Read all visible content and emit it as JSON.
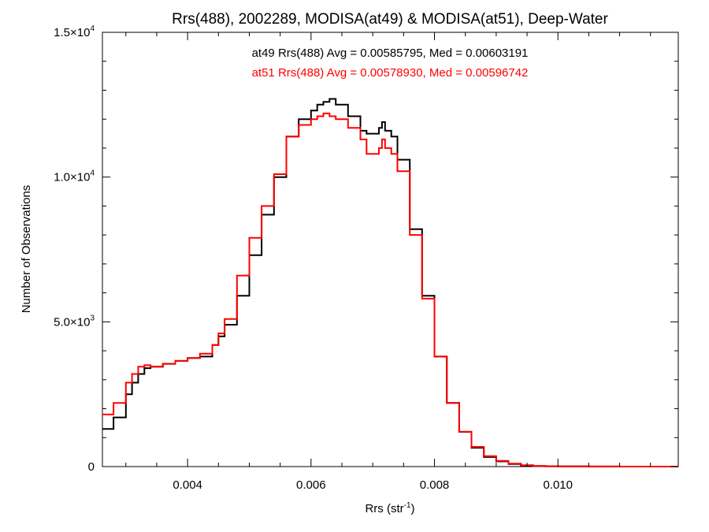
{
  "chart_data": {
    "type": "line",
    "title": "Rrs(488), 2002289, MODISA(at49) & MODISA(at51), Deep-Water",
    "xlabel": {
      "base": "Rrs (str",
      "sup": "-1",
      "close": ")"
    },
    "ylabel": "Number of Observations",
    "xlim": [
      0.00262,
      0.01195
    ],
    "ylim": [
      0,
      15000
    ],
    "grid": false,
    "xticks": [
      {
        "value": 0.004,
        "label": "0.004"
      },
      {
        "value": 0.006,
        "label": "0.006"
      },
      {
        "value": 0.008,
        "label": "0.008"
      },
      {
        "value": 0.01,
        "label": "0.010"
      }
    ],
    "yticks": [
      {
        "value": 0,
        "label": "0",
        "sup": ""
      },
      {
        "value": 5000,
        "label": "5.0×10",
        "sup": "3"
      },
      {
        "value": 10000,
        "label": "1.0×10",
        "sup": "4"
      },
      {
        "value": 15000,
        "label": "1.5×10",
        "sup": "4"
      }
    ],
    "annotations": [
      {
        "text": "at49 Rrs(488) Avg = 0.00585795, Med = 0.00603191",
        "color": "#000000"
      },
      {
        "text": "at51 Rrs(488) Avg = 0.00578930, Med = 0.00596742",
        "color": "#ff0000"
      }
    ],
    "series": [
      {
        "color": "#000000",
        "x": [
          0.00262,
          0.0028,
          0.003,
          0.0031,
          0.0032,
          0.0033,
          0.0034,
          0.0036,
          0.0038,
          0.004,
          0.0042,
          0.0044,
          0.0045,
          0.0046,
          0.0048,
          0.005,
          0.0052,
          0.0054,
          0.0056,
          0.0058,
          0.006,
          0.0061,
          0.0062,
          0.0063,
          0.0064,
          0.0066,
          0.0068,
          0.0069,
          0.007,
          0.0071,
          0.00715,
          0.0072,
          0.0073,
          0.0074,
          0.0076,
          0.0078,
          0.008,
          0.0082,
          0.0084,
          0.0086,
          0.0088,
          0.009,
          0.0092,
          0.0094,
          0.0096,
          0.0098,
          0.01,
          0.0105,
          0.011,
          0.01195
        ],
        "y": [
          1300,
          1700,
          2500,
          2900,
          3200,
          3400,
          3450,
          3550,
          3650,
          3750,
          3800,
          4200,
          4500,
          4900,
          5900,
          7300,
          8700,
          10000,
          11400,
          12000,
          12300,
          12500,
          12600,
          12700,
          12500,
          12100,
          11600,
          11500,
          11500,
          11700,
          11900,
          11600,
          11400,
          10600,
          8200,
          5900,
          3800,
          2200,
          1200,
          650,
          330,
          180,
          90,
          40,
          20,
          10,
          5,
          2,
          0,
          0
        ]
      },
      {
        "color": "#ff0000",
        "x": [
          0.00262,
          0.0028,
          0.003,
          0.0031,
          0.0032,
          0.0033,
          0.0034,
          0.0036,
          0.0038,
          0.004,
          0.0042,
          0.0044,
          0.0045,
          0.0046,
          0.0048,
          0.005,
          0.0052,
          0.0054,
          0.0056,
          0.0058,
          0.006,
          0.0061,
          0.0062,
          0.0063,
          0.0064,
          0.0066,
          0.0068,
          0.0069,
          0.007,
          0.0071,
          0.00715,
          0.0072,
          0.0073,
          0.0074,
          0.0076,
          0.0078,
          0.008,
          0.0082,
          0.0084,
          0.0086,
          0.0088,
          0.009,
          0.0092,
          0.0094,
          0.0096,
          0.0098,
          0.01,
          0.0105,
          0.011,
          0.01195
        ],
        "y": [
          1800,
          2200,
          2900,
          3200,
          3450,
          3500,
          3450,
          3550,
          3650,
          3750,
          3900,
          4200,
          4600,
          5100,
          6600,
          7900,
          9000,
          10100,
          11400,
          11800,
          12000,
          12100,
          12200,
          12100,
          12000,
          11700,
          11300,
          10800,
          10800,
          11000,
          11300,
          11000,
          10800,
          10200,
          8000,
          5800,
          3800,
          2200,
          1200,
          680,
          360,
          200,
          100,
          45,
          20,
          10,
          5,
          2,
          0,
          0
        ]
      }
    ]
  }
}
